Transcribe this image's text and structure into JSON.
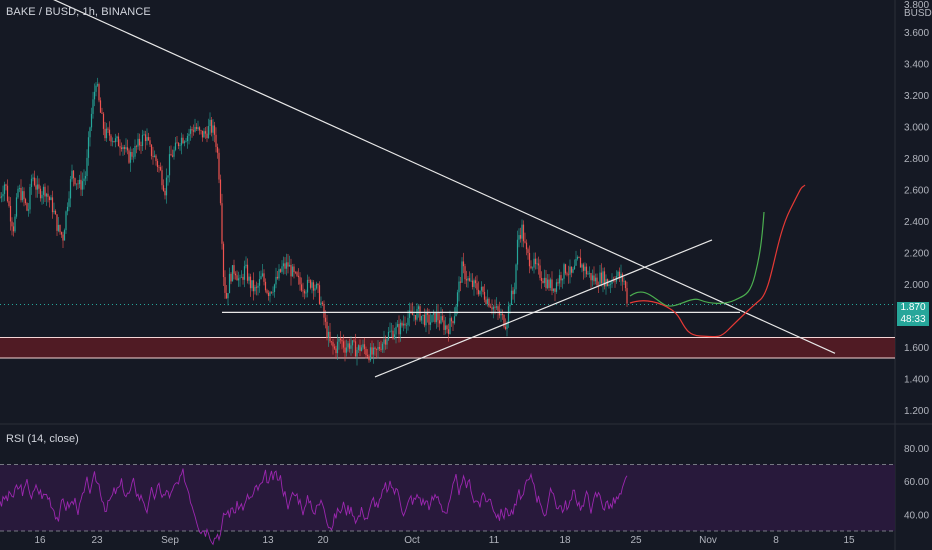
{
  "header": {
    "symbol_title": "BAKE / BUSD, 1h, BINANCE"
  },
  "price_axis": {
    "currency": "BUSD",
    "top_partial_label": "3.800",
    "ticks": [
      "3.600",
      "3.400",
      "3.200",
      "3.000",
      "2.800",
      "2.600",
      "2.400",
      "2.200",
      "2.000",
      "1.800",
      "1.600",
      "1.400",
      "1.200"
    ]
  },
  "last_price": {
    "value": "1.870",
    "countdown": "48:33"
  },
  "rsi": {
    "title": "RSI (14, close)",
    "ticks": [
      "80.00",
      "60.00",
      "40.00"
    ],
    "upper_band": 70,
    "lower_band": 30
  },
  "time_axis": {
    "labels": [
      "16",
      "23",
      "Sep",
      "13",
      "20",
      "Oct",
      "11",
      "18",
      "25",
      "Nov",
      "8",
      "15"
    ]
  },
  "colors": {
    "background": "#151924",
    "up_candle": "#26a69a",
    "down_candle": "#ef5350",
    "trendline": "#e8e8e8",
    "support_zone_fill": "#5a1c24",
    "rsi_line": "#9c27b0",
    "rsi_band_fill": "#2a1a3e",
    "projection_green": "#4caf50",
    "projection_red": "#e53935",
    "price_tag": "#26a69a"
  },
  "chart_data": {
    "type": "candlestick",
    "title": "BAKE / BUSD, 1h, BINANCE",
    "ylabel": "BUSD",
    "ylim": [
      1.2,
      3.8
    ],
    "x_tick_labels": [
      "16",
      "23",
      "Sep",
      "13",
      "20",
      "Oct",
      "11",
      "18",
      "25",
      "Nov",
      "8",
      "15"
    ],
    "price_path_anchors": [
      [
        0,
        2.55
      ],
      [
        5,
        2.65
      ],
      [
        10,
        2.45
      ],
      [
        14,
        2.35
      ],
      [
        18,
        2.6
      ],
      [
        23,
        2.55
      ],
      [
        28,
        2.45
      ],
      [
        32,
        2.7
      ],
      [
        38,
        2.58
      ],
      [
        45,
        2.6
      ],
      [
        52,
        2.5
      ],
      [
        58,
        2.35
      ],
      [
        63,
        2.3
      ],
      [
        68,
        2.55
      ],
      [
        72,
        2.7
      ],
      [
        80,
        2.62
      ],
      [
        86,
        2.7
      ],
      [
        90,
        3.0
      ],
      [
        93,
        3.15
      ],
      [
        96,
        3.3
      ],
      [
        100,
        3.1
      ],
      [
        105,
        2.95
      ],
      [
        110,
        2.95
      ],
      [
        116,
        2.9
      ],
      [
        122,
        2.9
      ],
      [
        128,
        2.8
      ],
      [
        135,
        2.85
      ],
      [
        140,
        2.9
      ],
      [
        145,
        2.95
      ],
      [
        150,
        2.85
      ],
      [
        155,
        2.8
      ],
      [
        160,
        2.72
      ],
      [
        165,
        2.6
      ],
      [
        170,
        2.8
      ],
      [
        175,
        2.85
      ],
      [
        180,
        2.92
      ],
      [
        188,
        2.95
      ],
      [
        195,
        3.0
      ],
      [
        200,
        2.95
      ],
      [
        205,
        2.95
      ],
      [
        210,
        3.0
      ],
      [
        215,
        2.95
      ],
      [
        218,
        2.8
      ],
      [
        221,
        2.5
      ],
      [
        223,
        2.1
      ],
      [
        226,
        1.9
      ],
      [
        230,
        2.05
      ],
      [
        235,
        2.1
      ],
      [
        240,
        2.0
      ],
      [
        245,
        2.1
      ],
      [
        250,
        2.0
      ],
      [
        256,
        1.95
      ],
      [
        262,
        2.05
      ],
      [
        268,
        1.95
      ],
      [
        275,
        2.0
      ],
      [
        282,
        2.1
      ],
      [
        288,
        2.12
      ],
      [
        294,
        2.05
      ],
      [
        300,
        2.0
      ],
      [
        306,
        1.98
      ],
      [
        312,
        2.02
      ],
      [
        318,
        1.95
      ],
      [
        322,
        1.85
      ],
      [
        326,
        1.72
      ],
      [
        330,
        1.62
      ],
      [
        335,
        1.58
      ],
      [
        340,
        1.65
      ],
      [
        345,
        1.6
      ],
      [
        350,
        1.62
      ],
      [
        356,
        1.58
      ],
      [
        362,
        1.6
      ],
      [
        368,
        1.56
      ],
      [
        375,
        1.55
      ],
      [
        382,
        1.63
      ],
      [
        388,
        1.68
      ],
      [
        394,
        1.7
      ],
      [
        400,
        1.72
      ],
      [
        406,
        1.78
      ],
      [
        412,
        1.8
      ],
      [
        418,
        1.82
      ],
      [
        424,
        1.78
      ],
      [
        430,
        1.76
      ],
      [
        436,
        1.8
      ],
      [
        442,
        1.75
      ],
      [
        448,
        1.72
      ],
      [
        454,
        1.8
      ],
      [
        458,
        1.95
      ],
      [
        462,
        2.1
      ],
      [
        466,
        2.05
      ],
      [
        470,
        2.0
      ],
      [
        476,
        1.98
      ],
      [
        482,
        1.95
      ],
      [
        488,
        1.9
      ],
      [
        494,
        1.85
      ],
      [
        500,
        1.8
      ],
      [
        506,
        1.75
      ],
      [
        510,
        1.9
      ],
      [
        514,
        1.95
      ],
      [
        518,
        2.3
      ],
      [
        522,
        2.35
      ],
      [
        526,
        2.2
      ],
      [
        530,
        2.15
      ],
      [
        536,
        2.1
      ],
      [
        542,
        2.05
      ],
      [
        548,
        2.0
      ],
      [
        554,
        1.98
      ],
      [
        560,
        2.05
      ],
      [
        566,
        2.1
      ],
      [
        572,
        2.05
      ],
      [
        578,
        2.15
      ],
      [
        584,
        2.1
      ],
      [
        590,
        2.05
      ],
      [
        596,
        2.02
      ],
      [
        602,
        2.05
      ],
      [
        608,
        2.0
      ],
      [
        614,
        2.05
      ],
      [
        618,
        2.05
      ],
      [
        624,
        2.02
      ],
      [
        628,
        1.87
      ]
    ],
    "trendlines": [
      {
        "name": "descending-resistance",
        "from": [
          0,
          3.96
        ],
        "to": [
          835,
          1.56
        ]
      },
      {
        "name": "ascending-support",
        "from": [
          375,
          1.41
        ],
        "to": [
          712,
          2.28
        ]
      },
      {
        "name": "horizontal-support",
        "from": [
          222,
          1.82
        ],
        "to": [
          740,
          1.82
        ]
      }
    ],
    "support_zone": [
      1.53,
      1.66
    ],
    "projections": [
      {
        "name": "bullish-projection",
        "color": "#4caf50"
      },
      {
        "name": "bearish-projection",
        "color": "#e53935"
      }
    ],
    "rsi_ylim": [
      15,
      95
    ],
    "rsi_bands": [
      30,
      70
    ]
  }
}
